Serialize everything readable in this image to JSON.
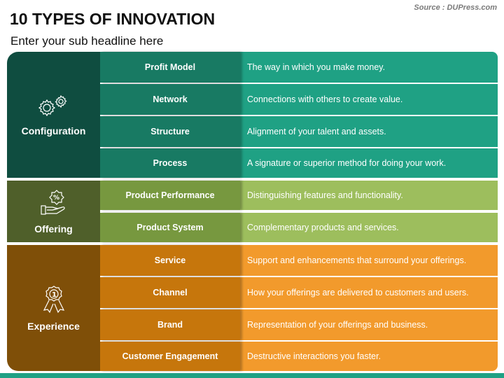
{
  "title": "10 TYPES OF INNOVATION",
  "subtitle": "Enter your sub headline here",
  "source": "Source : DUPress.com",
  "groups": [
    {
      "label": "Configuration",
      "icon": "gears-icon",
      "colors": {
        "dark": "#0f4d40",
        "mid": "#187a63",
        "light": "#1fa184"
      },
      "items": [
        {
          "name": "Profit Model",
          "desc": "The way in which you make money."
        },
        {
          "name": "Network",
          "desc": "Connections with others to create value."
        },
        {
          "name": "Structure",
          "desc": "Alignment of your talent and assets."
        },
        {
          "name": "Process",
          "desc": "A signature or superior method for doing your work."
        }
      ]
    },
    {
      "label": "Offering",
      "icon": "hand-discount-icon",
      "colors": {
        "dark": "#4f5f2a",
        "mid": "#77983f",
        "light": "#9dbe5d"
      },
      "items": [
        {
          "name": "Product Performance",
          "desc": "Distinguishing features and functionality."
        },
        {
          "name": "Product System",
          "desc": "Complementary products and services."
        }
      ]
    },
    {
      "label": "Experience",
      "icon": "award-ribbon-icon",
      "colors": {
        "dark": "#7f4f08",
        "mid": "#c6760c",
        "light": "#f29a2c"
      },
      "items": [
        {
          "name": "Service",
          "desc": "Support and enhancements that surround your offerings."
        },
        {
          "name": "Channel",
          "desc": "How your offerings are delivered to customers and users."
        },
        {
          "name": "Brand",
          "desc": "Representation of your offerings and business."
        },
        {
          "name": "Customer Engagement",
          "desc": "Destructive interactions you faster."
        }
      ]
    }
  ]
}
